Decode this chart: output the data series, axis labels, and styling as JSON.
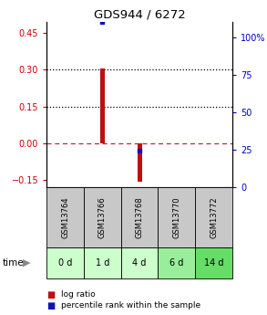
{
  "title": "GDS944 / 6272",
  "samples": [
    "GSM13764",
    "GSM13766",
    "GSM13768",
    "GSM13770",
    "GSM13772"
  ],
  "time_labels": [
    "0 d",
    "1 d",
    "4 d",
    "6 d",
    "14 d"
  ],
  "log_ratios": [
    0.0,
    0.305,
    -0.155,
    0.0,
    0.0
  ],
  "percentile_ranks": [
    null,
    100.0,
    22.0,
    null,
    null
  ],
  "ylim_left": [
    -0.18,
    0.495
  ],
  "ylim_right": [
    0,
    110
  ],
  "yticks_left": [
    -0.15,
    0,
    0.15,
    0.3,
    0.45
  ],
  "yticks_right": [
    0,
    25,
    50,
    75,
    100
  ],
  "hlines_dotted": [
    0.15,
    0.3
  ],
  "hline_dashed": 0.0,
  "bar_width": 0.12,
  "bar_color_red": "#bb1111",
  "bar_color_blue": "#1111bb",
  "sample_bg_color": "#c8c8c8",
  "time_bg_colors": [
    "#ccffcc",
    "#ccffcc",
    "#ccffcc",
    "#99ee99",
    "#66dd66"
  ],
  "grid_bg": "#ffffff",
  "title_color": "#000000",
  "left_tick_color": "#cc0000",
  "right_tick_color": "#0000cc",
  "legend_red_label": "log ratio",
  "legend_blue_label": "percentile rank within the sample",
  "time_label": "time",
  "pct_rank_mapping": [
    -0.18,
    0.495
  ],
  "blue_sq_size": 3.5
}
